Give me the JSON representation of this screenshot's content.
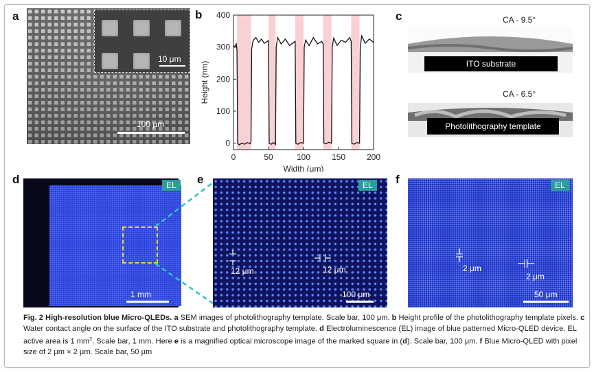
{
  "panels": {
    "a": {
      "label": "a",
      "inset_scale": "10 μm",
      "scale": "100 μm"
    },
    "b": {
      "label": "b"
    },
    "c": {
      "label": "c",
      "ca_top": "CA - 9.5°",
      "substrate_top": "ITO  substrate",
      "ca_bottom": "CA - 6.5°",
      "substrate_bottom": "Photolithography template"
    },
    "d": {
      "label": "d",
      "badge": "EL",
      "scale": "1 mm"
    },
    "e": {
      "label": "e",
      "badge": "EL",
      "meas_v": "12 μm",
      "meas_h": "12 μm",
      "scale": "100 μm"
    },
    "f": {
      "label": "f",
      "badge": "EL",
      "meas_v": "2 μm",
      "meas_h": "2 μm",
      "scale": "50 μm"
    }
  },
  "chart_data": {
    "type": "line",
    "xlabel": "Width (μm)",
    "ylabel": "Height (nm)",
    "xlim": [
      0,
      200
    ],
    "ylim": [
      -20,
      400
    ],
    "xticks": [
      0,
      50,
      100,
      150,
      200
    ],
    "yticks": [
      0,
      100,
      200,
      300,
      400
    ],
    "highlight_bands": [
      [
        5,
        25
      ],
      [
        50,
        60
      ],
      [
        88,
        100
      ],
      [
        128,
        140
      ],
      [
        168,
        180
      ]
    ],
    "series": [
      {
        "x": [
          0,
          2,
          4,
          5,
          6,
          8,
          12,
          16,
          20,
          24,
          25,
          26,
          28,
          32,
          36,
          40,
          44,
          48,
          50,
          51,
          54,
          57,
          60,
          61,
          63,
          68,
          74,
          80,
          86,
          88,
          89,
          92,
          96,
          100,
          101,
          103,
          108,
          114,
          120,
          126,
          128,
          129,
          132,
          136,
          140,
          141,
          143,
          148,
          154,
          160,
          166,
          168,
          169,
          172,
          176,
          180,
          181,
          183,
          188,
          194,
          200
        ],
        "y": [
          305,
          300,
          310,
          290,
          0,
          -5,
          0,
          -3,
          2,
          -2,
          5,
          295,
          320,
          330,
          315,
          325,
          312,
          318,
          320,
          0,
          -3,
          2,
          -4,
          300,
          330,
          310,
          325,
          305,
          315,
          318,
          0,
          -3,
          2,
          0,
          300,
          322,
          305,
          330,
          310,
          318,
          310,
          0,
          -2,
          3,
          0,
          300,
          328,
          305,
          322,
          315,
          330,
          318,
          0,
          -3,
          2,
          0,
          300,
          335,
          312,
          325,
          315
        ]
      }
    ]
  },
  "caption": {
    "fig": "Fig. 2 High-resolution blue Micro-QLEDs.",
    "a_letter": "a",
    "a_text": " SEM images of photolithography template. Scale bar, 100 μm. ",
    "b_letter": "b",
    "b_text": " Height profile of the photolithography template pixels. ",
    "c_letter": "c",
    "c_text": " Water contact angle on the surface of the ITO substrate and photolithography template. ",
    "d_letter": "d",
    "d_text": " Electroluminescence (EL) image of blue patterned Micro-QLED device. EL active area is 1 mm",
    "d_sup": "2",
    "d_text2": ". Scale bar, 1 mm. Here ",
    "e_letter": "e",
    "e_text": " is a magnified optical microscope image of the marked square in (",
    "e_ref": "d",
    "e_text2": "). Scale bar, 100 μm. ",
    "f_letter": "f",
    "f_text": " Blue Micro-QLED with pixel size of 2 μm × 2 μm. Scale bar, 50 μm"
  }
}
